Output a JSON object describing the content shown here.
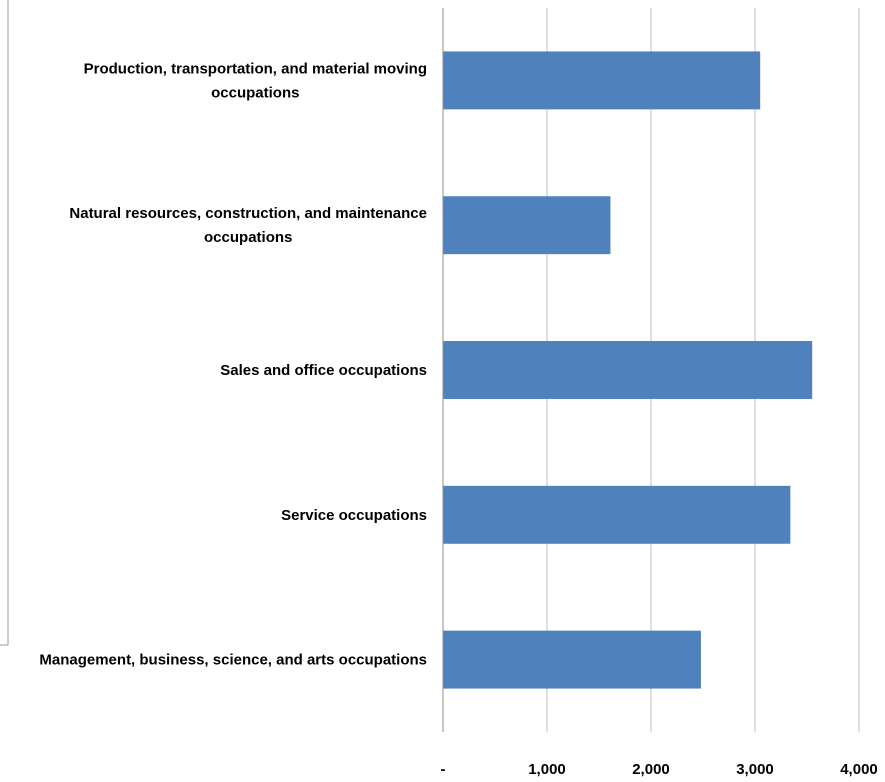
{
  "chart_data": {
    "type": "bar",
    "orientation": "horizontal",
    "title": "",
    "xlabel": "",
    "ylabel": "",
    "categories": [
      [
        "Management, business, science, and arts occupations"
      ],
      [
        "Service occupations"
      ],
      [
        "Sales and office occupations"
      ],
      [
        "Natural resources, construction, and maintenance",
        "occupations"
      ],
      [
        "Production, transportation, and material moving",
        "occupations"
      ]
    ],
    "values": [
      2480,
      3340,
      3550,
      1610,
      3050
    ],
    "xlim": [
      0,
      4000
    ],
    "ticks": [
      0,
      1000,
      2000,
      3000,
      4000
    ],
    "tick_labels": [
      "-",
      "1,000",
      "2,000",
      "3,000",
      "4,000"
    ],
    "grid": true,
    "legend": "none",
    "bar_color": "#4f81bd"
  }
}
